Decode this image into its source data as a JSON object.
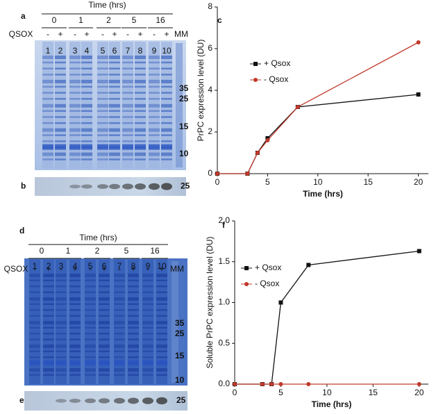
{
  "gels": [
    {
      "letter": "a",
      "time_label": "Time (hrs)",
      "times": [
        "0",
        "1",
        "2",
        "5",
        "16"
      ],
      "qsox_label": "QSOX",
      "signs": [
        "-",
        "+",
        "-",
        "+",
        "-",
        "+",
        "-",
        "+",
        "-",
        "+"
      ],
      "lanes": [
        "1",
        "2",
        "3",
        "4",
        "5",
        "6",
        "7",
        "8",
        "9",
        "10"
      ],
      "mm": "MM",
      "markers": [
        "35",
        "25",
        "15",
        "10"
      ],
      "blot_letter": "b",
      "blot_marker": "25"
    },
    {
      "letter": "d",
      "time_label": "Time (hrs)",
      "times": [
        "0",
        "1",
        "2",
        "5",
        "16"
      ],
      "qsox_label": "QSOX",
      "signs": [
        "-",
        "+",
        "-",
        "+",
        "-",
        "+",
        "-",
        "+",
        "-",
        "+"
      ],
      "lanes": [
        "1",
        "2",
        "3",
        "4",
        "5",
        "6",
        "7",
        "8",
        "9",
        "10"
      ],
      "mm": "MM",
      "markers": [
        "35",
        "25",
        "15",
        "10"
      ],
      "blot_letter": "e",
      "blot_marker": "25"
    }
  ],
  "chart_data": [
    {
      "type": "line",
      "panel": "c",
      "x_label": "Time (hrs)",
      "y_label": "PrPC expression level (DU)",
      "x": [
        0,
        3,
        4,
        5,
        8,
        20
      ],
      "series": [
        {
          "name": "+ Qsox",
          "color": "#111111",
          "marker": "square",
          "values": [
            0,
            0,
            1,
            1.7,
            3.2,
            3.8
          ]
        },
        {
          "name": "- Qsox",
          "color": "#c0392b",
          "marker": "circle",
          "values": [
            0,
            0,
            1,
            1.6,
            3.2,
            6.3
          ]
        }
      ],
      "xlim": [
        0,
        21
      ],
      "xticks": [
        0,
        5,
        10,
        15,
        20
      ],
      "ylim": [
        0,
        8
      ],
      "yticks": [
        0,
        2,
        4,
        6,
        8
      ]
    },
    {
      "type": "line",
      "panel": "f",
      "x_label": "Time (hrs)",
      "y_label": "Soluble PrPC expression level (DU)",
      "x": [
        0,
        3,
        4,
        5,
        8,
        20
      ],
      "series": [
        {
          "name": "+ Qsox",
          "color": "#111111",
          "marker": "square",
          "values": [
            0,
            0,
            0,
            1.0,
            1.46,
            1.63
          ]
        },
        {
          "name": "- Qsox",
          "color": "#c0392b",
          "marker": "circle",
          "values": [
            0,
            0,
            0,
            0,
            0,
            0
          ]
        }
      ],
      "xlim": [
        0,
        21
      ],
      "xticks": [
        0,
        5,
        10,
        15,
        20
      ],
      "ylim": [
        0,
        2
      ],
      "yticks": [
        {
          "value": 0,
          "label": "0.0"
        },
        0.5,
        {
          "value": 1,
          "label": "1.0"
        },
        1.5,
        {
          "value": 2,
          "label": "2.0"
        }
      ]
    }
  ]
}
